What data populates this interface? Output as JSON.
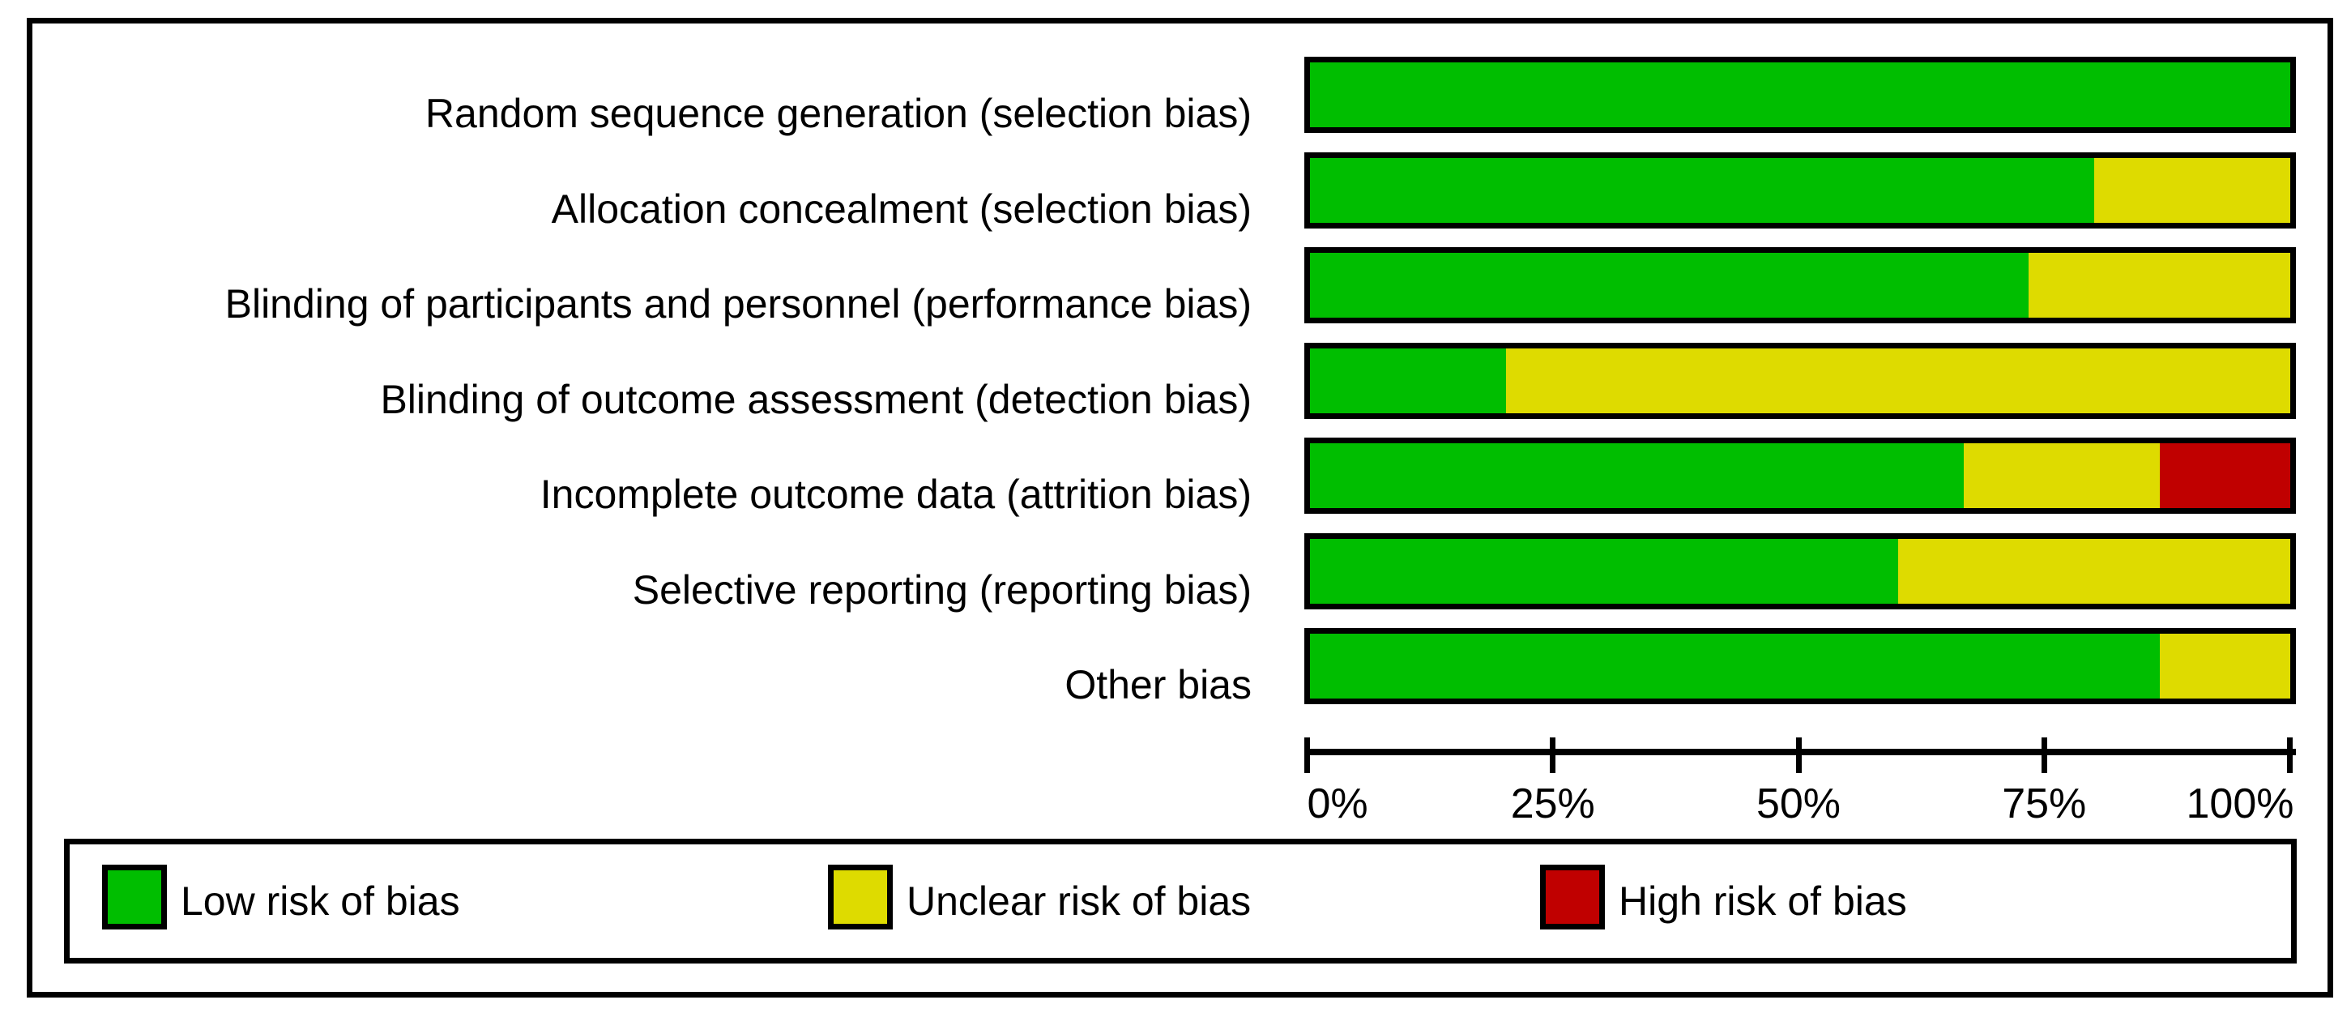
{
  "colors": {
    "low_risk": "#00BE00",
    "unclear_risk": "#DEDB00",
    "high_risk": "#C00000",
    "frame": "#000000",
    "text": "#000000",
    "background": "#FFFFFF"
  },
  "chart_data": {
    "type": "bar",
    "orientation": "horizontal",
    "stacked": true,
    "units": "percent",
    "title": "",
    "xlabel": "",
    "ylabel": "",
    "categories": [
      "Random sequence generation (selection bias)",
      "Allocation concealment (selection bias)",
      "Blinding of participants and personnel (performance bias)",
      "Blinding of outcome assessment (detection bias)",
      "Incomplete outcome data (attrition bias)",
      "Selective reporting (reporting bias)",
      "Other bias"
    ],
    "series": [
      {
        "name": "Low risk of bias",
        "color": "#00BE00",
        "values": [
          100,
          80,
          73.33,
          20,
          66.67,
          60,
          86.67
        ]
      },
      {
        "name": "Unclear risk of bias",
        "color": "#DEDB00",
        "values": [
          0,
          20,
          26.67,
          80,
          20,
          40,
          13.33
        ]
      },
      {
        "name": "High risk of bias",
        "color": "#C00000",
        "values": [
          0,
          0,
          0,
          0,
          13.33,
          0,
          0
        ]
      }
    ],
    "x_axis": {
      "range": [
        0,
        100
      ],
      "tick_labels": [
        "0%",
        "25%",
        "50%",
        "75%",
        "100%"
      ],
      "grid": false
    },
    "legend": {
      "position": "bottom",
      "entries": [
        {
          "label": "Low risk of bias",
          "color": "#00BE00"
        },
        {
          "label": "Unclear risk of bias",
          "color": "#DEDB00"
        },
        {
          "label": "High risk of bias",
          "color": "#C00000"
        }
      ]
    }
  }
}
